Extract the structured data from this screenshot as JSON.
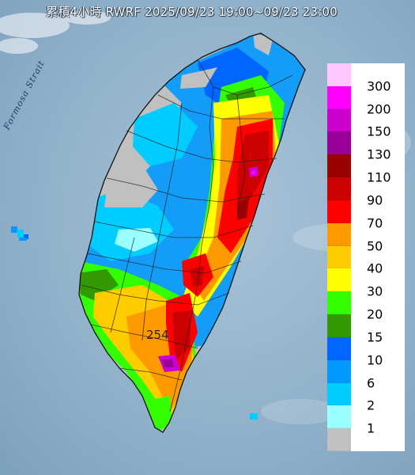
{
  "title": "累積4小時 RWRF 2025/09/23 19:00~09/23 23:00",
  "sea_label": "Formosa Strait",
  "max_label": "254",
  "legend": {
    "levels": [
      {
        "label": "300",
        "color": "#ffc6ff"
      },
      {
        "label": "200",
        "color": "#ff00ff"
      },
      {
        "label": "150",
        "color": "#cc00cc"
      },
      {
        "label": "130",
        "color": "#990099"
      },
      {
        "label": "110",
        "color": "#990000"
      },
      {
        "label": "90",
        "color": "#cc0000"
      },
      {
        "label": "70",
        "color": "#ff0000"
      },
      {
        "label": "50",
        "color": "#ff9900"
      },
      {
        "label": "40",
        "color": "#ffcc00"
      },
      {
        "label": "30",
        "color": "#ffff00"
      },
      {
        "label": "20",
        "color": "#33ff00"
      },
      {
        "label": "15",
        "color": "#339900"
      },
      {
        "label": "10",
        "color": "#0066ff"
      },
      {
        "label": "6",
        "color": "#0099ff"
      },
      {
        "label": "2",
        "color": "#00ccff"
      },
      {
        "label": "1",
        "color": "#99ffff"
      },
      {
        "label": "",
        "color": "#c0c0c0"
      }
    ]
  }
}
